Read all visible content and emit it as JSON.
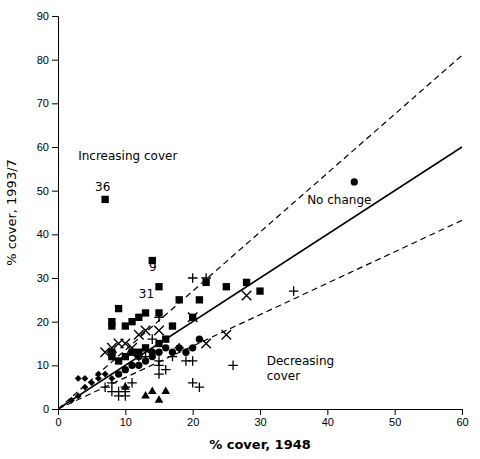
{
  "chart_data": {
    "type": "scatter",
    "xlabel": "% cover, 1948",
    "ylabel": "% cover, 1993/7",
    "xlim": [
      0,
      60
    ],
    "ylim": [
      0,
      90
    ],
    "xticks": [
      0,
      10,
      20,
      30,
      40,
      50,
      60
    ],
    "yticks": [
      0,
      10,
      20,
      30,
      40,
      50,
      60,
      70,
      80,
      90
    ],
    "grid": false,
    "series": [
      {
        "type": "scatter",
        "marker": "square",
        "color": "#000000",
        "x": [
          7,
          8,
          8,
          8,
          8,
          9,
          9,
          10,
          10,
          11,
          11,
          12,
          12,
          13,
          13,
          14,
          15,
          15,
          15,
          16,
          17,
          18,
          20,
          21,
          22,
          25,
          28,
          30
        ],
        "values": [
          48,
          12,
          13,
          19,
          20,
          11,
          23,
          12,
          19,
          13,
          20,
          13,
          21,
          14,
          22,
          34,
          15,
          22,
          28,
          16,
          19,
          25,
          21,
          25,
          29,
          28,
          29,
          27
        ]
      },
      {
        "type": "scatter",
        "marker": "circle",
        "color": "#000000",
        "x": [
          9,
          10,
          11,
          12,
          12,
          13,
          14,
          14,
          15,
          16,
          17,
          18,
          19,
          20,
          21,
          44
        ],
        "values": [
          8,
          9,
          10,
          10,
          12,
          11,
          12,
          13,
          13,
          14,
          13,
          14,
          13,
          14,
          16,
          52
        ]
      },
      {
        "type": "scatter",
        "marker": "diamond",
        "color": "#000000",
        "x": [
          2,
          3,
          3,
          4,
          4,
          5,
          6,
          6,
          7,
          8
        ],
        "values": [
          2,
          3,
          7,
          5,
          7,
          6,
          7,
          8,
          8,
          7
        ]
      },
      {
        "type": "scatter",
        "marker": "triangle",
        "color": "#000000",
        "x": [
          10,
          13,
          14,
          15,
          16
        ],
        "values": [
          5,
          3,
          4,
          2,
          4
        ]
      },
      {
        "type": "scatter",
        "marker": "x",
        "color": "#000000",
        "x": [
          7,
          8,
          9,
          10,
          11,
          12,
          13,
          15,
          20,
          22,
          25,
          28
        ],
        "values": [
          13,
          14,
          15,
          15,
          14,
          17,
          18,
          18,
          21,
          15,
          17,
          26
        ]
      },
      {
        "type": "scatter",
        "marker": "plus",
        "color": "#000000",
        "x": [
          7,
          8,
          8,
          9,
          9,
          10,
          10,
          10,
          11,
          12,
          13,
          14,
          14,
          15,
          15,
          15,
          15,
          16,
          17,
          18,
          19,
          20,
          20,
          20,
          21,
          22,
          26,
          35
        ],
        "values": [
          5,
          4,
          6,
          3,
          4,
          3,
          4,
          5,
          6,
          12,
          12,
          13,
          16,
          8,
          10,
          11,
          21,
          9,
          12,
          14,
          11,
          6,
          11,
          30,
          5,
          30,
          10,
          27
        ]
      },
      {
        "type": "line",
        "line_style": "solid",
        "color": "#000000",
        "x": [
          0,
          60
        ],
        "values": [
          0,
          60
        ]
      },
      {
        "type": "line",
        "line_style": "dashed",
        "color": "#000000",
        "x": [
          0,
          60
        ],
        "values": [
          0,
          81
        ]
      },
      {
        "type": "line",
        "line_style": "dashed",
        "color": "#000000",
        "x": [
          0,
          60
        ],
        "values": [
          0,
          43.2
        ]
      }
    ],
    "annotations": [
      {
        "text": "36",
        "x": 5.5,
        "y": 50.0
      },
      {
        "text": "9",
        "x": 13.5,
        "y": 31.5
      },
      {
        "text": "31",
        "x": 12.0,
        "y": 25.5
      },
      {
        "text": "Increasing cover",
        "x": 3,
        "y": 57
      },
      {
        "text": "No change",
        "x": 37,
        "y": 47
      },
      {
        "text": "Decreasing\ncover",
        "x": 31,
        "y": 10
      }
    ]
  }
}
